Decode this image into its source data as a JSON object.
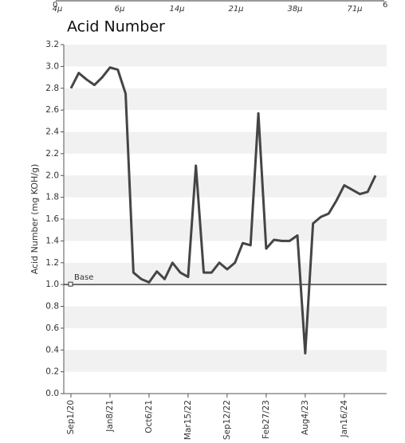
{
  "top_axis": {
    "start": "0",
    "end": "6",
    "labels": [
      "4μ",
      "6μ",
      "14μ",
      "21μ",
      "38μ",
      "71μ"
    ]
  },
  "chart_data": {
    "type": "line",
    "title": "Acid Number",
    "ylabel": "Acid Number (mg KOH/g)",
    "categories": [
      "Sep1/20",
      null,
      null,
      null,
      null,
      "Jan8/21",
      null,
      null,
      null,
      null,
      "Oct6/21",
      null,
      null,
      null,
      null,
      "Mar15/22",
      null,
      null,
      null,
      null,
      "Sep12/22",
      null,
      null,
      null,
      null,
      "Feb27/23",
      null,
      null,
      null,
      null,
      "Aug4/23",
      null,
      null,
      null,
      null,
      "Jan16/24",
      null,
      null,
      null,
      null
    ],
    "values": [
      2.8,
      2.94,
      2.88,
      2.83,
      2.9,
      2.99,
      2.97,
      2.75,
      1.11,
      1.05,
      1.02,
      1.12,
      1.05,
      1.2,
      1.11,
      1.07,
      2.09,
      1.11,
      1.11,
      1.2,
      1.14,
      1.2,
      1.38,
      1.36,
      2.57,
      1.33,
      1.41,
      1.4,
      1.4,
      1.45,
      0.37,
      1.56,
      1.62,
      1.65,
      1.77,
      1.91,
      1.87,
      1.83,
      1.85,
      2.0
    ],
    "color": "#454545",
    "base": {
      "label": "Base",
      "value": 1
    },
    "ylim": [
      0,
      3.2
    ],
    "yticks": [
      {
        "value": 0,
        "label": "0.0"
      },
      0.2,
      0.4,
      0.6,
      0.8,
      {
        "value": 1,
        "label": "1.0"
      },
      1.2,
      1.4,
      1.6,
      1.8,
      {
        "value": 2,
        "label": "2.0"
      },
      2.2,
      2.4,
      2.6,
      2.8,
      {
        "value": 3,
        "label": "3.0"
      },
      3.2
    ],
    "grid": true
  }
}
